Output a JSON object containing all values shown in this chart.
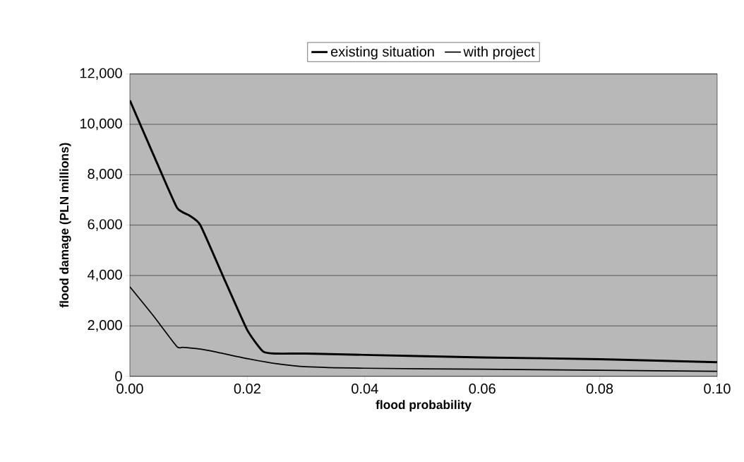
{
  "chart_data": {
    "type": "line",
    "xlabel": "flood probability",
    "ylabel": "flood damage  (PLN millions)",
    "xlim": [
      0,
      0.1
    ],
    "xticks": [
      {
        "value": 0,
        "label": "0.00"
      },
      {
        "value": 0.02,
        "label": "0.02"
      },
      {
        "value": 0.04,
        "label": "0.04"
      },
      {
        "value": 0.06,
        "label": "0.06"
      },
      {
        "value": 0.08,
        "label": "0.08"
      },
      {
        "value": 0.1,
        "label": "0.10"
      }
    ],
    "ylim": [
      0,
      12000
    ],
    "yticks": [
      {
        "value": 0,
        "label": "0"
      },
      {
        "value": 2000,
        "label": "2,000"
      },
      {
        "value": 4000,
        "label": "4,000"
      },
      {
        "value": 6000,
        "label": "6,000"
      },
      {
        "value": 8000,
        "label": "8,000"
      },
      {
        "value": 10000,
        "label": "10,000"
      },
      {
        "value": 12000,
        "label": "12,000"
      }
    ],
    "grid": "y",
    "legend": "top",
    "marker": "none",
    "line_style": "solid",
    "series": [
      {
        "name": "existing situation",
        "color": "#000000",
        "x": [
          0,
          0.004,
          0.008,
          0.01,
          0.012,
          0.016,
          0.02,
          0.0227,
          0.025,
          0.03,
          0.04,
          0.06,
          0.08,
          0.1
        ],
        "values": [
          10950,
          8800,
          6700,
          6400,
          6000,
          3900,
          1830,
          980,
          900,
          900,
          850,
          750,
          680,
          560
        ]
      },
      {
        "name": "with project",
        "color": "#000000",
        "x": [
          0,
          0.004,
          0.008,
          0.009,
          0.012,
          0.015,
          0.02,
          0.025,
          0.03,
          0.04,
          0.06,
          0.08,
          0.1
        ],
        "values": [
          3550,
          2400,
          1180,
          1150,
          1080,
          950,
          700,
          500,
          380,
          320,
          280,
          240,
          200
        ]
      }
    ]
  }
}
